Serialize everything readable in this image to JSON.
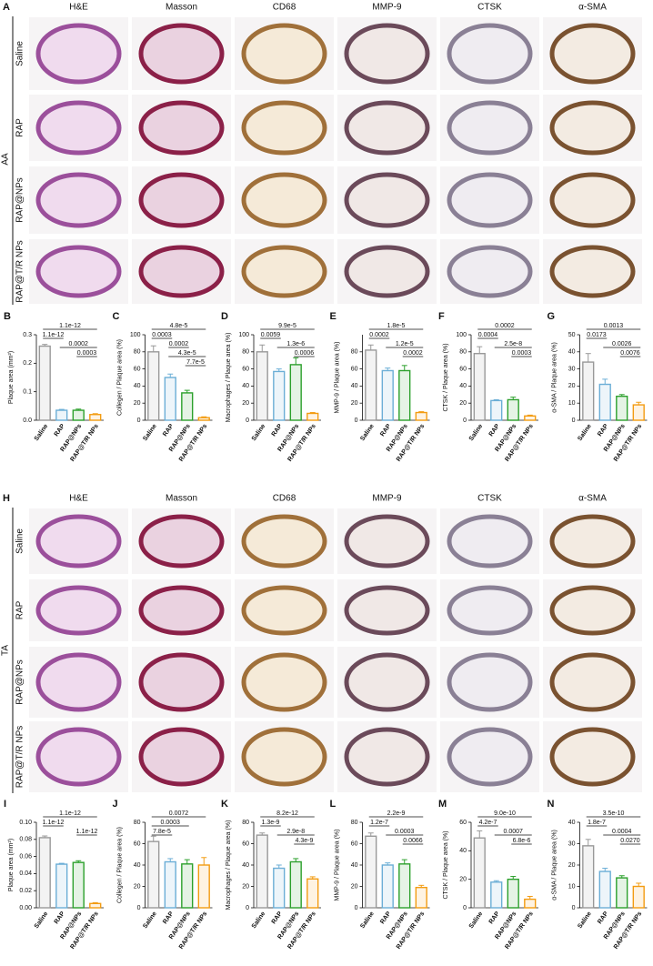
{
  "panel_A": {
    "letter": "A",
    "group": "AA",
    "columns": [
      "H&E",
      "Masson",
      "CD68",
      "MMP-9",
      "CTSK",
      "α-SMA"
    ],
    "rows": [
      "Saline",
      "RAP",
      "RAP@NPs",
      "RAP@T/R NPs"
    ]
  },
  "panel_H": {
    "letter": "H",
    "group": "TA",
    "columns": [
      "H&E",
      "Masson",
      "CD68",
      "MMP-9",
      "CTSK",
      "α-SMA"
    ],
    "rows": [
      "Saline",
      "RAP",
      "RAP@NPs",
      "RAP@T/R NPs"
    ]
  },
  "chart_data": [
    {
      "type": "bar",
      "letter": "B",
      "ylabel": "Plaque area (mm²)",
      "categories": [
        "Saline",
        "RAP",
        "RAP@NPs",
        "RAP@T/R NPs"
      ],
      "values": [
        0.26,
        0.035,
        0.035,
        0.02
      ],
      "errors": [
        0.006,
        0.003,
        0.004,
        0.003
      ],
      "colors": [
        "#999999",
        "#6baed6",
        "#2ca02c",
        "#f39c12"
      ],
      "ylim": [
        0,
        0.3
      ],
      "yticks": [
        {
          "value": 0,
          "label": "0.0"
        },
        0.1,
        0.2,
        0.3
      ],
      "comparisons": [
        "1.1e-12",
        "1.1e-12",
        "0.0002",
        "0.0003"
      ]
    },
    {
      "type": "bar",
      "letter": "C",
      "ylabel": "Collegen / Plaque area (%)",
      "categories": [
        "Saline",
        "RAP",
        "RAP@NPs",
        "RAP@T/R NPs"
      ],
      "values": [
        80,
        50,
        32,
        3
      ],
      "errors": [
        7,
        4,
        3,
        1
      ],
      "colors": [
        "#999999",
        "#6baed6",
        "#2ca02c",
        "#f39c12"
      ],
      "ylim": [
        0,
        100
      ],
      "yticks": [
        0,
        20,
        40,
        60,
        80,
        100
      ],
      "comparisons": [
        "4.8e-5",
        "0.0003",
        "0.0002",
        "4.3e-5",
        "7.7e-5"
      ]
    },
    {
      "type": "bar",
      "letter": "D",
      "ylabel": "Macrophages / Plaque area (%)",
      "categories": [
        "Saline",
        "RAP",
        "RAP@NPs",
        "RAP@T/R NPs"
      ],
      "values": [
        80,
        57,
        65,
        8
      ],
      "errors": [
        8,
        3,
        8,
        1
      ],
      "colors": [
        "#999999",
        "#6baed6",
        "#2ca02c",
        "#f39c12"
      ],
      "ylim": [
        0,
        100
      ],
      "yticks": [
        0,
        20,
        40,
        60,
        80,
        100
      ],
      "comparisons": [
        "9.9e-5",
        "0.0059",
        "1.3e-6",
        "0.0006"
      ]
    },
    {
      "type": "bar",
      "letter": "E",
      "ylabel": "MMP-9 / Plaque area (%)",
      "categories": [
        "Saline",
        "RAP",
        "RAP@NPs",
        "RAP@T/R NPs"
      ],
      "values": [
        82,
        58,
        58,
        9
      ],
      "errors": [
        6,
        3,
        6,
        1
      ],
      "colors": [
        "#999999",
        "#6baed6",
        "#2ca02c",
        "#f39c12"
      ],
      "ylim": [
        0,
        100
      ],
      "yticks": [
        0,
        20,
        40,
        60,
        80
      ],
      "comparisons": [
        "1.8e-5",
        "0.0002",
        "1.2e-5",
        "0.0002"
      ]
    },
    {
      "type": "bar",
      "letter": "F",
      "ylabel": "CTSK / Plaque area (%)",
      "categories": [
        "Saline",
        "RAP",
        "RAP@NPs",
        "RAP@T/R NPs"
      ],
      "values": [
        78,
        23,
        24,
        5
      ],
      "errors": [
        8,
        1,
        3,
        1
      ],
      "colors": [
        "#999999",
        "#6baed6",
        "#2ca02c",
        "#f39c12"
      ],
      "ylim": [
        0,
        100
      ],
      "yticks": [
        0,
        20,
        40,
        60,
        80,
        100
      ],
      "comparisons": [
        "0.0002",
        "0.0004",
        "2.5e-8",
        "0.0003"
      ]
    },
    {
      "type": "bar",
      "letter": "G",
      "ylabel": "α-SMA / Plaque area (%)",
      "categories": [
        "Saline",
        "RAP",
        "RAP@NPs",
        "RAP@T/R NPs"
      ],
      "values": [
        34,
        21,
        14,
        9
      ],
      "errors": [
        5,
        3,
        1,
        1.5
      ],
      "colors": [
        "#999999",
        "#6baed6",
        "#2ca02c",
        "#f39c12"
      ],
      "ylim": [
        0,
        50
      ],
      "yticks": [
        0,
        10,
        20,
        30,
        40,
        50
      ],
      "comparisons": [
        "0.0013",
        "0.0173",
        "0.0026",
        "0.0076"
      ]
    },
    {
      "type": "bar",
      "letter": "I",
      "ylabel": "Plaque area (mm²)",
      "categories": [
        "Saline",
        "RAP",
        "RAP@NPs",
        "RAP@T/R NPs"
      ],
      "values": [
        0.082,
        0.051,
        0.053,
        0.005
      ],
      "errors": [
        0.002,
        0.001,
        0.002,
        0.001
      ],
      "colors": [
        "#999999",
        "#6baed6",
        "#2ca02c",
        "#f39c12"
      ],
      "ylim": [
        0,
        0.1
      ],
      "yticks": [
        {
          "value": 0,
          "label": "0.00"
        },
        {
          "value": 0.02,
          "label": "0.02"
        },
        {
          "value": 0.04,
          "label": "0.04"
        },
        {
          "value": 0.06,
          "label": "0.06"
        },
        {
          "value": 0.08,
          "label": "0.08"
        },
        {
          "value": 0.1,
          "label": "0.10"
        }
      ],
      "comparisons": [
        "1.1e-12",
        "1.1e-12",
        "1.1e-12"
      ]
    },
    {
      "type": "bar",
      "letter": "J",
      "ylabel": "Collegen / Plaque area (%)",
      "categories": [
        "Saline",
        "RAP",
        "RAP@NPs",
        "RAP@T/R NPs"
      ],
      "values": [
        62,
        43,
        41,
        40
      ],
      "errors": [
        5,
        3,
        4,
        7
      ],
      "colors": [
        "#999999",
        "#6baed6",
        "#2ca02c",
        "#f39c12"
      ],
      "ylim": [
        0,
        80
      ],
      "yticks": [
        0,
        20,
        40,
        60,
        80
      ],
      "comparisons": [
        "0.0072",
        "0.0003",
        "7.8e-5"
      ]
    },
    {
      "type": "bar",
      "letter": "K",
      "ylabel": "Macrophages / Plaque area (%)",
      "categories": [
        "Saline",
        "RAP",
        "RAP@NPs",
        "RAP@T/R NPs"
      ],
      "values": [
        68,
        37,
        43,
        27
      ],
      "errors": [
        2,
        3,
        3,
        2
      ],
      "colors": [
        "#999999",
        "#6baed6",
        "#2ca02c",
        "#f39c12"
      ],
      "ylim": [
        0,
        80
      ],
      "yticks": [
        0,
        20,
        40,
        60,
        80
      ],
      "comparisons": [
        "8.2e-12",
        "1.3e-9",
        "2.9e-8",
        "4.3e-9"
      ]
    },
    {
      "type": "bar",
      "letter": "L",
      "ylabel": "MMP-9 / Plaque area (%)",
      "categories": [
        "Saline",
        "RAP",
        "RAP@NPs",
        "RAP@T/R NPs"
      ],
      "values": [
        67,
        40,
        41,
        19
      ],
      "errors": [
        3,
        2,
        4,
        2
      ],
      "colors": [
        "#999999",
        "#6baed6",
        "#2ca02c",
        "#f39c12"
      ],
      "ylim": [
        0,
        80
      ],
      "yticks": [
        0,
        20,
        40,
        60,
        80
      ],
      "comparisons": [
        "2.2e-9",
        "1.2e-7",
        "0.0003",
        "0.0066"
      ]
    },
    {
      "type": "bar",
      "letter": "M",
      "ylabel": "CTSK / Plaque area (%)",
      "categories": [
        "Saline",
        "RAP",
        "RAP@NPs",
        "RAP@T/R NPs"
      ],
      "values": [
        49,
        18,
        20,
        6
      ],
      "errors": [
        5,
        1,
        2,
        2
      ],
      "colors": [
        "#999999",
        "#6baed6",
        "#2ca02c",
        "#f39c12"
      ],
      "ylim": [
        0,
        60
      ],
      "yticks": [
        0,
        20,
        40,
        60
      ],
      "comparisons": [
        "9.0e-10",
        "4.2e-7",
        "0.0007",
        "6.8e-6"
      ]
    },
    {
      "type": "bar",
      "letter": "N",
      "ylabel": "α-SMA / Plaque area (%)",
      "categories": [
        "Saline",
        "RAP",
        "RAP@NPs",
        "RAP@T/R NPs"
      ],
      "values": [
        29,
        17,
        14,
        10
      ],
      "errors": [
        3,
        1.5,
        1,
        1.5
      ],
      "colors": [
        "#999999",
        "#6baed6",
        "#2ca02c",
        "#f39c12"
      ],
      "ylim": [
        0,
        40
      ],
      "yticks": [
        0,
        10,
        20,
        30,
        40
      ],
      "comparisons": [
        "3.5e-10",
        "1.8e-7",
        "0.0004",
        "0.0270"
      ]
    }
  ]
}
